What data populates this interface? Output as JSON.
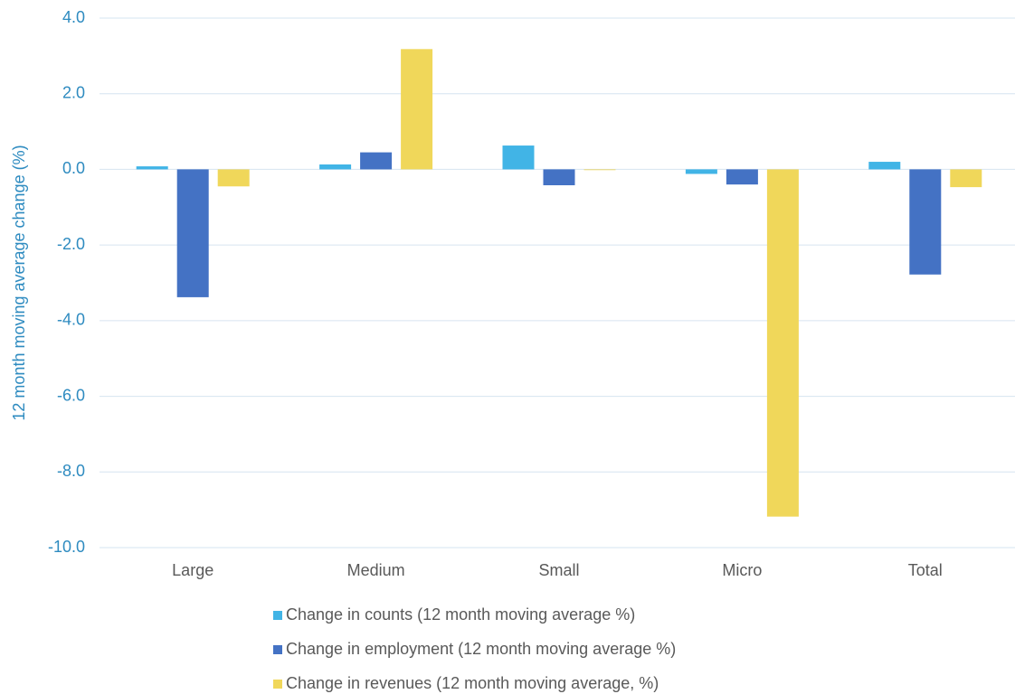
{
  "chart_data": {
    "type": "bar",
    "y_axis_label": "12 month moving average change (%)",
    "categories": [
      "Large",
      "Medium",
      "Small",
      "Micro",
      "Total"
    ],
    "series": [
      {
        "name": "Change in counts (12 month moving average %)",
        "color": "#41b4e6",
        "values": [
          0.08,
          0.13,
          0.63,
          -0.12,
          0.2
        ]
      },
      {
        "name": "Change in employment (12 month moving average %)",
        "color": "#4472c4",
        "values": [
          -3.38,
          0.45,
          -0.42,
          -0.4,
          -2.78
        ]
      },
      {
        "name": "Change in revenues (12 month moving average, %)",
        "color": "#f0d75a",
        "values": [
          -0.45,
          3.18,
          -0.02,
          -9.18,
          -0.47
        ]
      }
    ],
    "ylim": [
      -10,
      4
    ],
    "yticks": [
      {
        "value": -10,
        "label": "-10.0"
      },
      {
        "value": -8,
        "label": "-8.0"
      },
      {
        "value": -6,
        "label": "-6.0"
      },
      {
        "value": -4,
        "label": "-4.0"
      },
      {
        "value": -2,
        "label": "-2.0"
      },
      {
        "value": 0,
        "label": "0.0"
      },
      {
        "value": 2,
        "label": "2.0"
      },
      {
        "value": 4,
        "label": "4.0"
      }
    ],
    "grid": true,
    "legend": "bottom"
  }
}
